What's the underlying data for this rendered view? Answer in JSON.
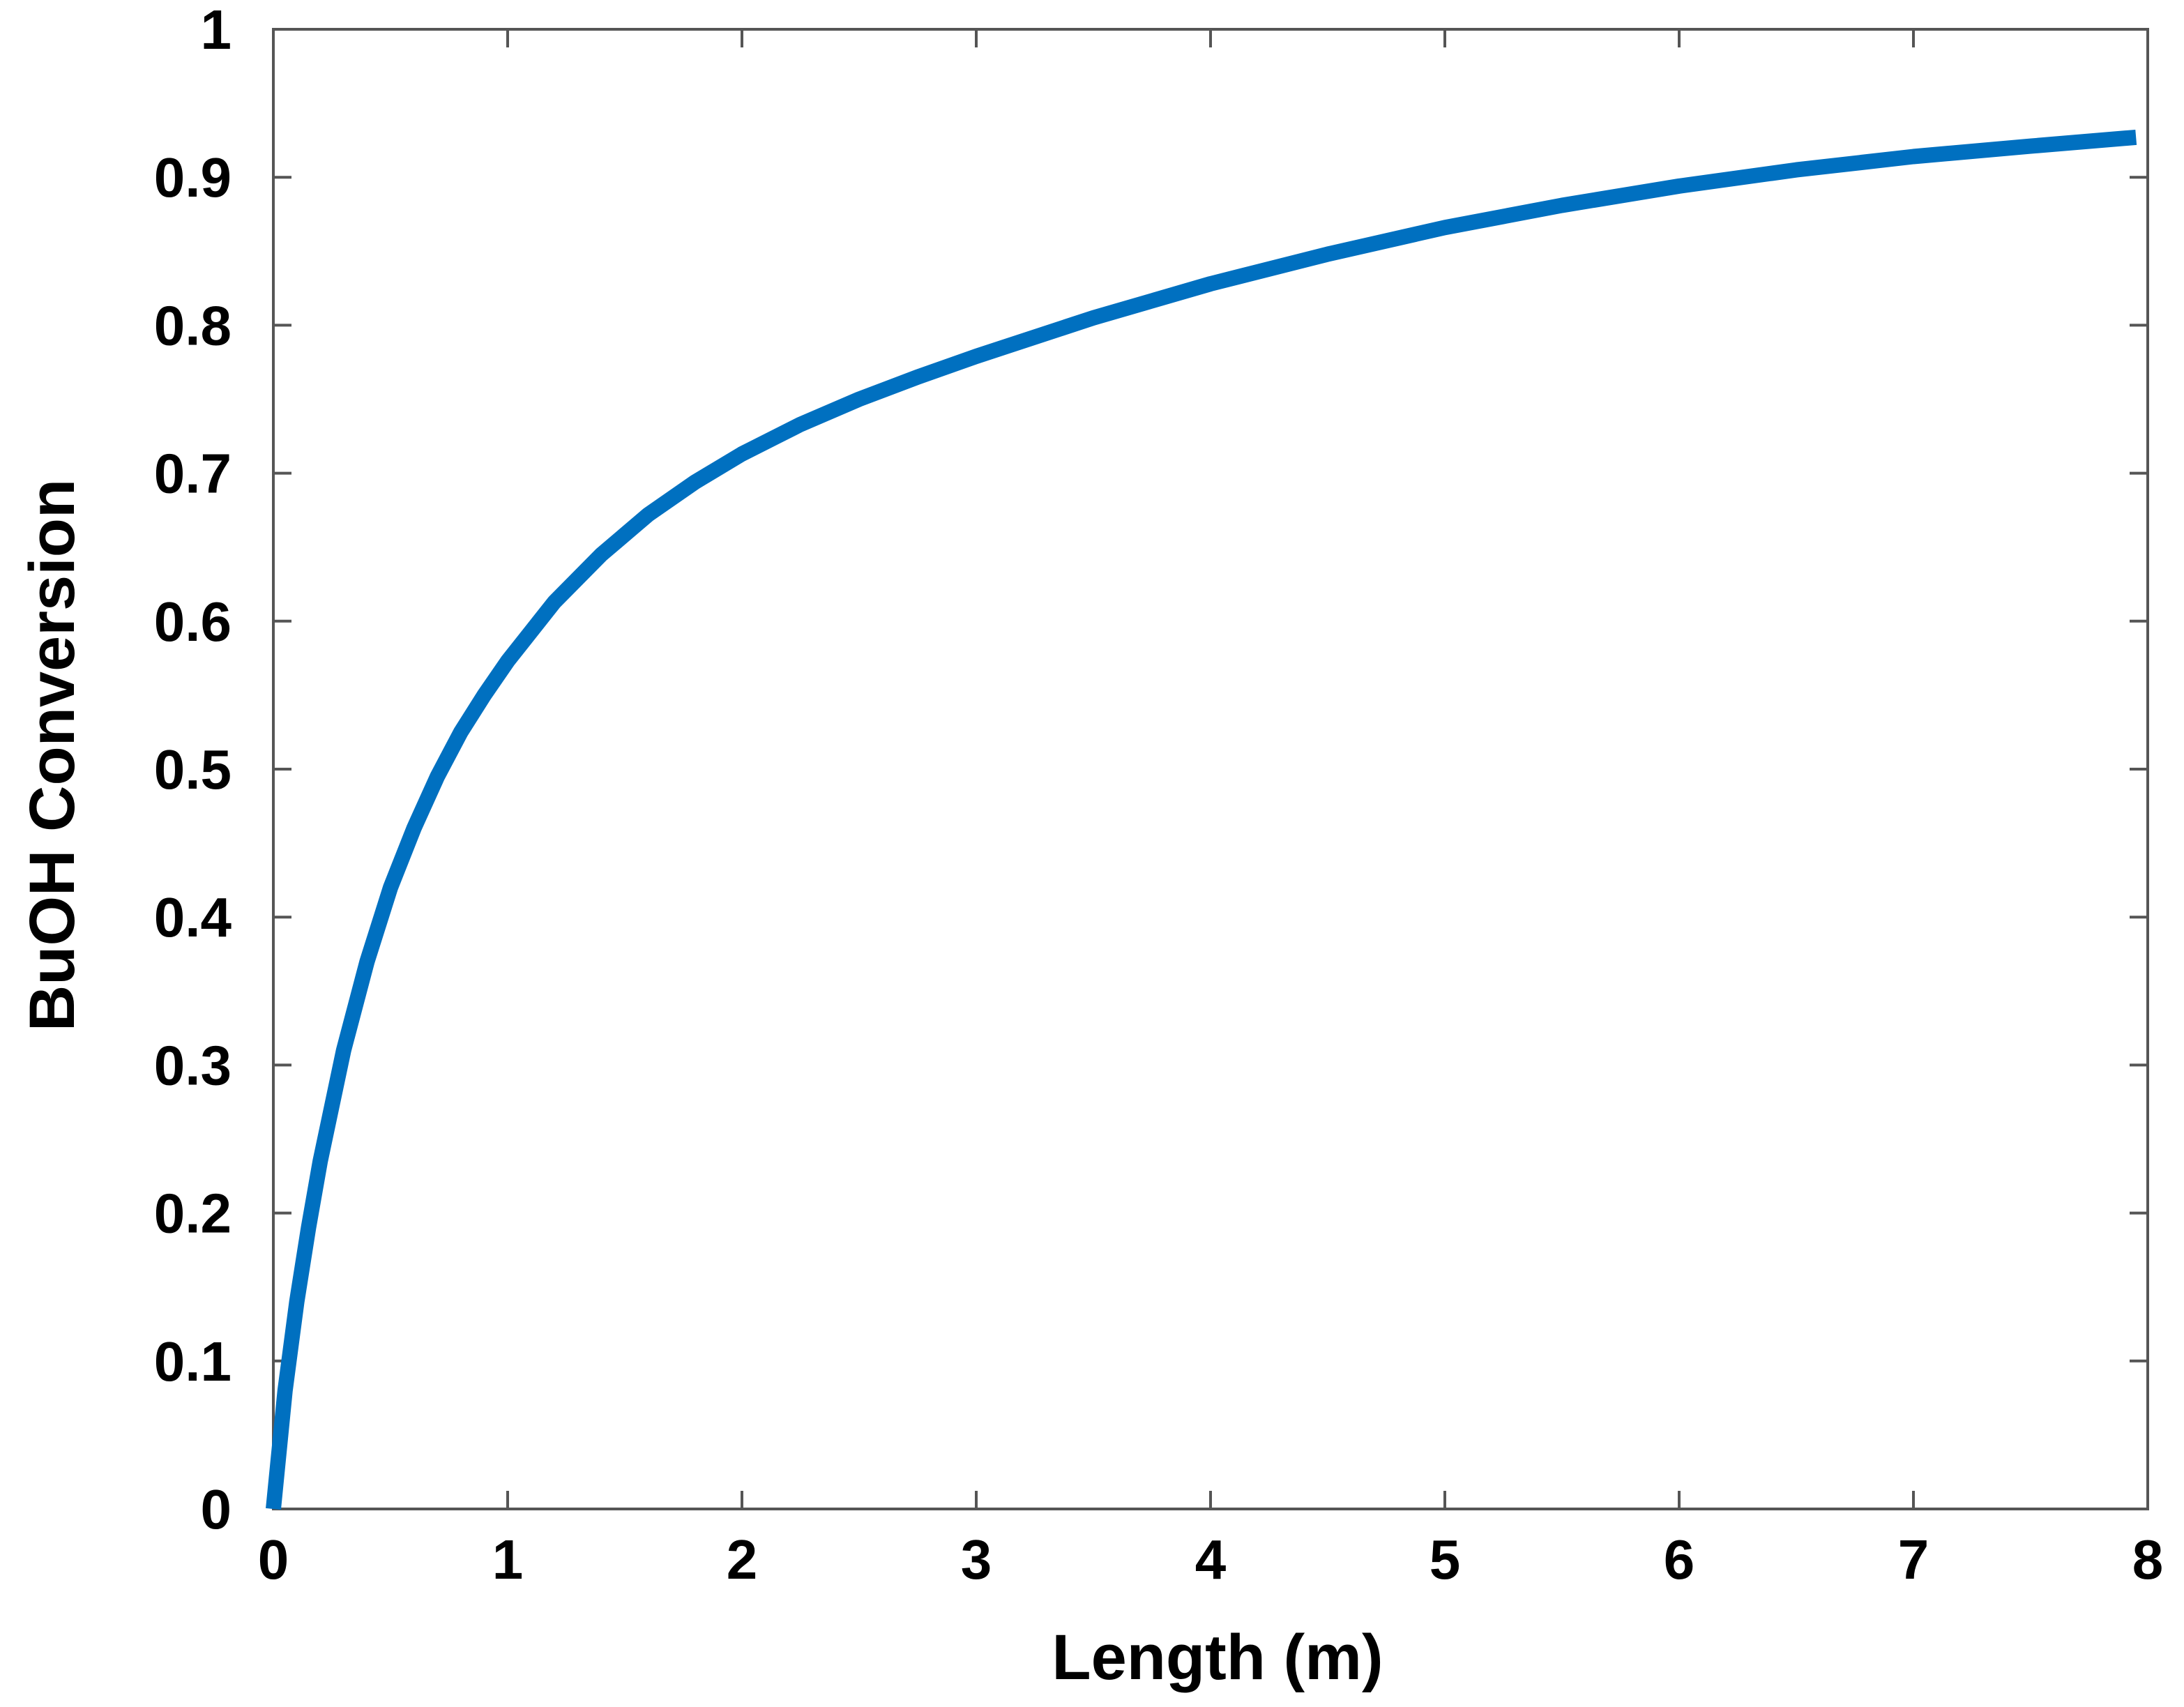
{
  "chart_data": {
    "type": "line",
    "title": "",
    "xlabel": "Length (m)",
    "ylabel": "BuOH Conversion",
    "xlim": [
      0,
      8
    ],
    "ylim": [
      0,
      1
    ],
    "xticks": [
      0,
      1,
      2,
      3,
      4,
      5,
      6,
      7,
      8
    ],
    "yticks": [
      0,
      0.1,
      0.2,
      0.3,
      0.4,
      0.5,
      0.6,
      0.7,
      0.8,
      0.9,
      1
    ],
    "xtick_labels": [
      "0",
      "1",
      "2",
      "3",
      "4",
      "5",
      "6",
      "7",
      "8"
    ],
    "ytick_labels": [
      "0",
      "0.1",
      "0.2",
      "0.3",
      "0.4",
      "0.5",
      "0.6",
      "0.7",
      "0.8",
      "0.9",
      "1"
    ],
    "grid": false,
    "legend": "none",
    "series": [
      {
        "color": "#0070C0",
        "x": [
          0,
          0.05,
          0.1,
          0.15,
          0.2,
          0.3,
          0.4,
          0.5,
          0.6,
          0.7,
          0.8,
          0.9,
          1.0,
          1.2,
          1.4,
          1.6,
          1.8,
          2.0,
          2.25,
          2.5,
          2.75,
          3.0,
          3.5,
          4.0,
          4.5,
          5.0,
          5.5,
          6.0,
          6.5,
          7.0,
          7.5,
          7.95
        ],
        "y": [
          0,
          0.08,
          0.14,
          0.19,
          0.235,
          0.31,
          0.37,
          0.42,
          0.46,
          0.495,
          0.525,
          0.55,
          0.573,
          0.613,
          0.645,
          0.672,
          0.694,
          0.713,
          0.733,
          0.75,
          0.765,
          0.779,
          0.805,
          0.828,
          0.848,
          0.866,
          0.881,
          0.894,
          0.905,
          0.914,
          0.921,
          0.927
        ]
      }
    ]
  }
}
